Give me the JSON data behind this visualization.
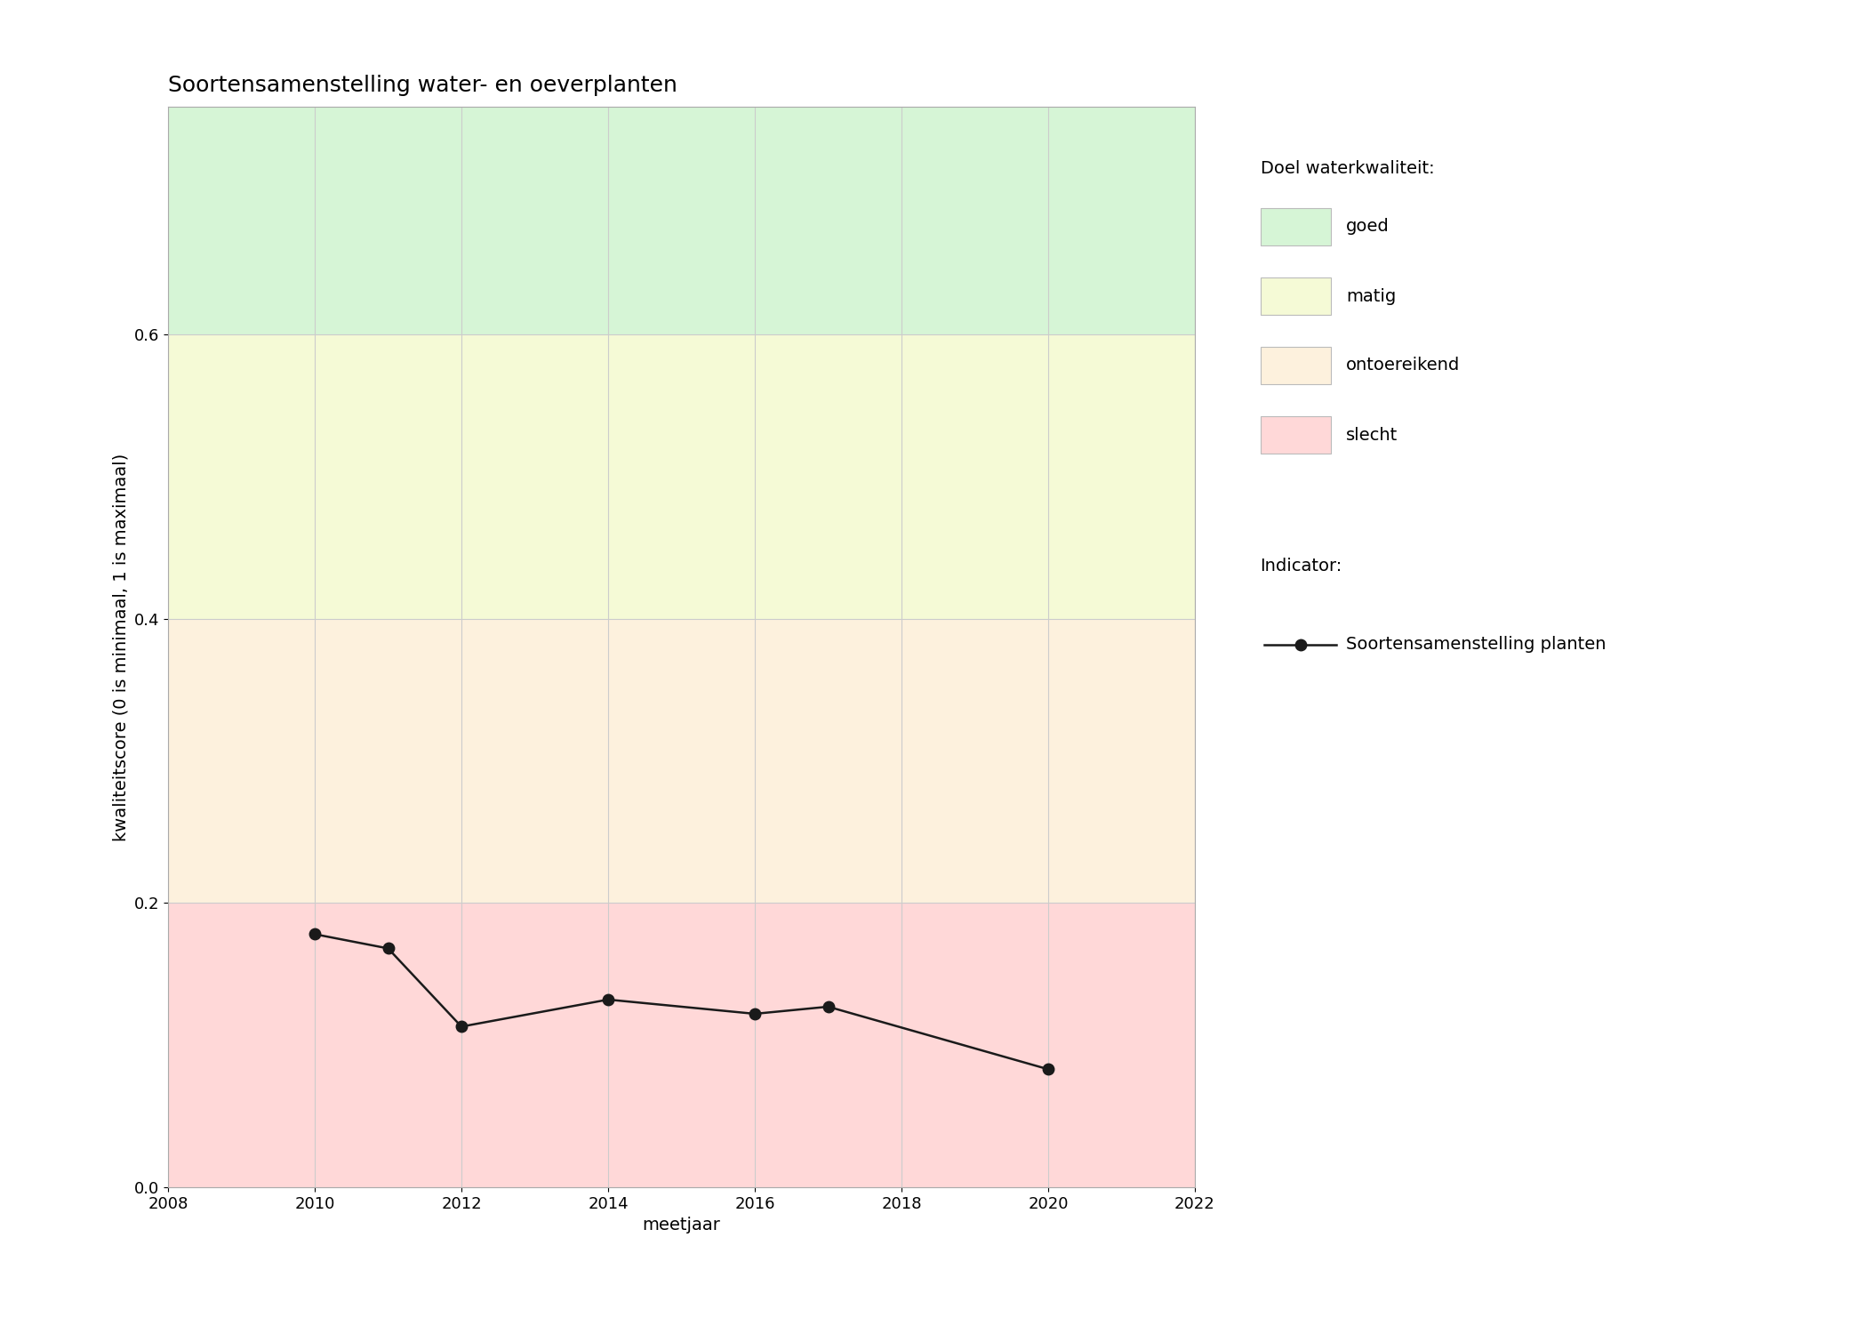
{
  "title": "Soortensamenstelling water- en oeverplanten",
  "xlabel": "meetjaar",
  "ylabel": "kwaliteitscore (0 is minimaal, 1 is maximaal)",
  "xlim": [
    2008,
    2022
  ],
  "ylim": [
    0,
    0.76
  ],
  "xticks": [
    2008,
    2010,
    2012,
    2014,
    2016,
    2018,
    2020,
    2022
  ],
  "yticks": [
    0.0,
    0.2,
    0.4,
    0.6
  ],
  "years": [
    2010,
    2011,
    2012,
    2014,
    2016,
    2017,
    2020
  ],
  "values": [
    0.178,
    0.168,
    0.113,
    0.132,
    0.122,
    0.127,
    0.083
  ],
  "bands": [
    {
      "ymin": 0.6,
      "ymax": 0.76,
      "color": "#d6f5d6",
      "label": "goed"
    },
    {
      "ymin": 0.4,
      "ymax": 0.6,
      "color": "#f5fad6",
      "label": "matig"
    },
    {
      "ymin": 0.2,
      "ymax": 0.4,
      "color": "#fdf1dd",
      "label": "ontoereikend"
    },
    {
      "ymin": 0.0,
      "ymax": 0.2,
      "color": "#ffd8d8",
      "label": "slecht"
    }
  ],
  "legend_title_doel": "Doel waterkwaliteit:",
  "legend_title_indicator": "Indicator:",
  "indicator_label": "Soortensamenstelling planten",
  "line_color": "#1a1a1a",
  "marker": "o",
  "markersize": 9,
  "linewidth": 1.8,
  "grid_color": "#cccccc",
  "background_color": "#ffffff",
  "title_fontsize": 18,
  "label_fontsize": 14,
  "tick_fontsize": 13,
  "legend_fontsize": 14
}
